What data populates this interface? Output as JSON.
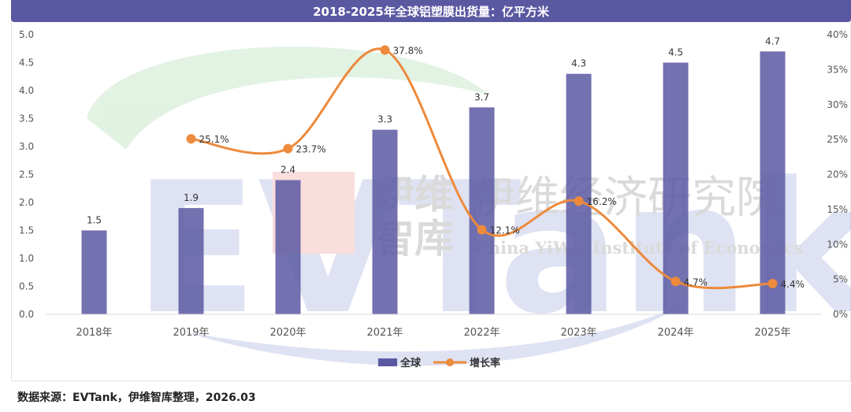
{
  "title": "2018-2025年全球铝塑膜出货量：亿平方米",
  "source": "数据来源：EVTank，伊维智库整理，2026.03",
  "watermark": {
    "brand": "EVTank",
    "cn_line1": "伊维",
    "cn_line2": "智库",
    "institute_cn": "伊维经济研究院",
    "institute_en": "China YiWei Institute of Economics"
  },
  "colors": {
    "bar": "#5b58a2",
    "line": "#ed8a3c",
    "title_bg": "#5b58a2"
  },
  "chart_data": {
    "type": "bar",
    "categories": [
      "2018年",
      "2019年",
      "2020年",
      "2021年",
      "2022年",
      "2023年",
      "2024年",
      "2025年"
    ],
    "series": [
      {
        "name": "全球",
        "type": "bar",
        "axis": "left",
        "values": [
          1.5,
          1.9,
          2.4,
          3.3,
          3.7,
          4.3,
          4.5,
          4.7
        ],
        "labels": [
          "1.5",
          "1.9",
          "2.4",
          "3.3",
          "3.7",
          "4.3",
          "4.5",
          "4.7"
        ]
      },
      {
        "name": "增长率",
        "type": "line",
        "axis": "right",
        "values": [
          null,
          25.1,
          23.7,
          37.8,
          12.1,
          16.2,
          4.7,
          4.4
        ],
        "labels": [
          "",
          "25.1%",
          "23.7%",
          "37.8%",
          "12.1%",
          "16.2%",
          "4.7%",
          "4.4%"
        ]
      }
    ],
    "ylim": [
      0,
      5.0
    ],
    "yticks": [
      "0.0",
      "0.5",
      "1.0",
      "1.5",
      "2.0",
      "2.5",
      "3.0",
      "3.5",
      "4.0",
      "4.5",
      "5.0"
    ],
    "y2lim": [
      0,
      40
    ],
    "y2ticks": [
      "0%",
      "5%",
      "10%",
      "15%",
      "20%",
      "25%",
      "30%",
      "35%",
      "40%"
    ],
    "grid": false,
    "legend_position": "bottom-center"
  }
}
